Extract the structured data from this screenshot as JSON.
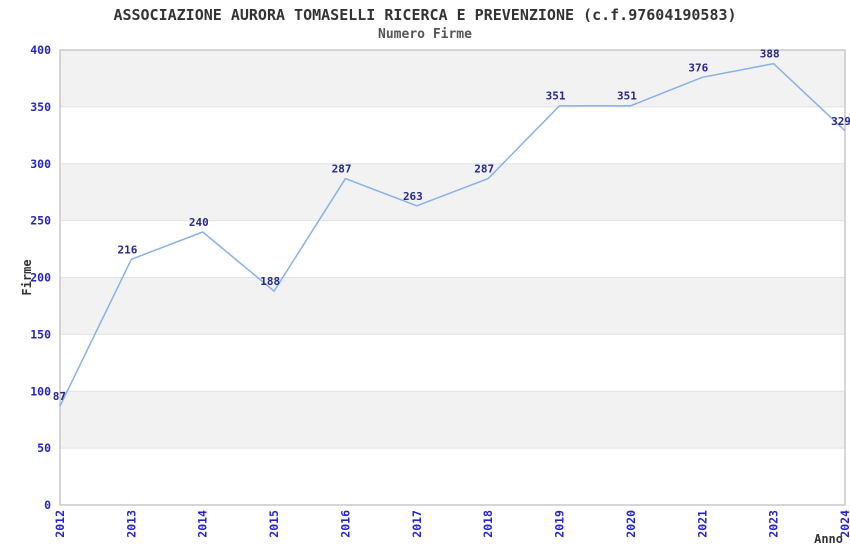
{
  "header": {
    "title": "ASSOCIAZIONE AURORA TOMASELLI RICERCA E PREVENZIONE (c.f.97604190583)",
    "subtitle": "Numero Firme"
  },
  "chart_data": {
    "type": "line",
    "title": "ASSOCIAZIONE AURORA TOMASELLI RICERCA E PREVENZIONE (c.f.97604190583)",
    "subtitle": "Numero Firme",
    "xlabel": "Anno",
    "ylabel": "Firme",
    "categories": [
      "2012",
      "2013",
      "2014",
      "2015",
      "2016",
      "2017",
      "2018",
      "2019",
      "2020",
      "2021",
      "2023",
      "2024"
    ],
    "values": [
      87,
      216,
      240,
      188,
      287,
      263,
      287,
      351,
      351,
      376,
      388,
      329
    ],
    "ylim": [
      0,
      400
    ],
    "ytick_step": 50,
    "yticks": [
      0,
      50,
      100,
      150,
      200,
      250,
      300,
      350,
      400
    ],
    "grid": "horizontal-bands-alternating",
    "legend": "none",
    "point_labels_shown": true,
    "x_tick_rotation_deg": -90,
    "colors": {
      "line": "#86b2e8",
      "point_label": "#26268f",
      "tick_label": "#2424cc",
      "band_fill": "#f2f2f2",
      "grid_line": "#e2e2e2",
      "plot_border": "#c8c8c8",
      "title": "#333333",
      "subtitle": "#555555",
      "axis_title": "#333333",
      "background": "#ffffff"
    }
  }
}
